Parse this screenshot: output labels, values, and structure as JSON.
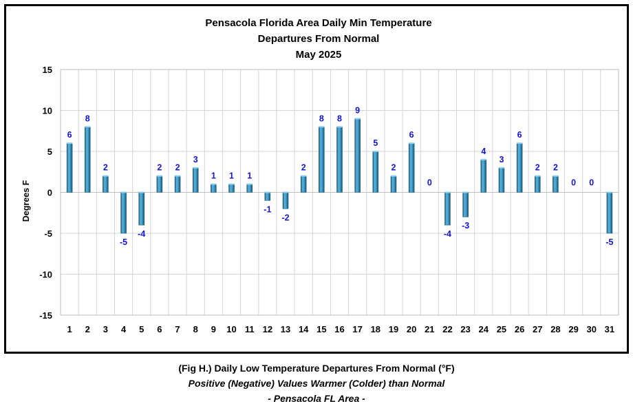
{
  "chart_data": {
    "type": "bar",
    "title_lines": [
      "Pensacola Florida Area Daily Min Temperature",
      "Departures From Normal",
      "May 2025"
    ],
    "ylabel": "Degrees F",
    "xlabel": "",
    "ylim": [
      -15,
      15
    ],
    "ytick_step": 5,
    "grid": true,
    "categories": [
      "1",
      "2",
      "3",
      "4",
      "5",
      "6",
      "7",
      "8",
      "9",
      "10",
      "11",
      "12",
      "13",
      "14",
      "15",
      "16",
      "17",
      "18",
      "19",
      "20",
      "21",
      "22",
      "23",
      "24",
      "25",
      "26",
      "27",
      "28",
      "29",
      "30",
      "31"
    ],
    "values": [
      6,
      8,
      2,
      -5,
      -4,
      2,
      2,
      3,
      1,
      1,
      1,
      -1,
      -2,
      2,
      8,
      8,
      9,
      5,
      2,
      6,
      0,
      -4,
      -3,
      4,
      3,
      6,
      2,
      2,
      0,
      0,
      -5
    ],
    "bar_color": "#2f8db8",
    "label_color": "#1414d2"
  },
  "caption": {
    "line1": "(Fig H.) Daily Low Temperature Departures From Normal (°F)",
    "line2": "Positive (Negative) Values Warmer (Colder) than Normal",
    "line3": "- Pensacola FL Area -"
  }
}
